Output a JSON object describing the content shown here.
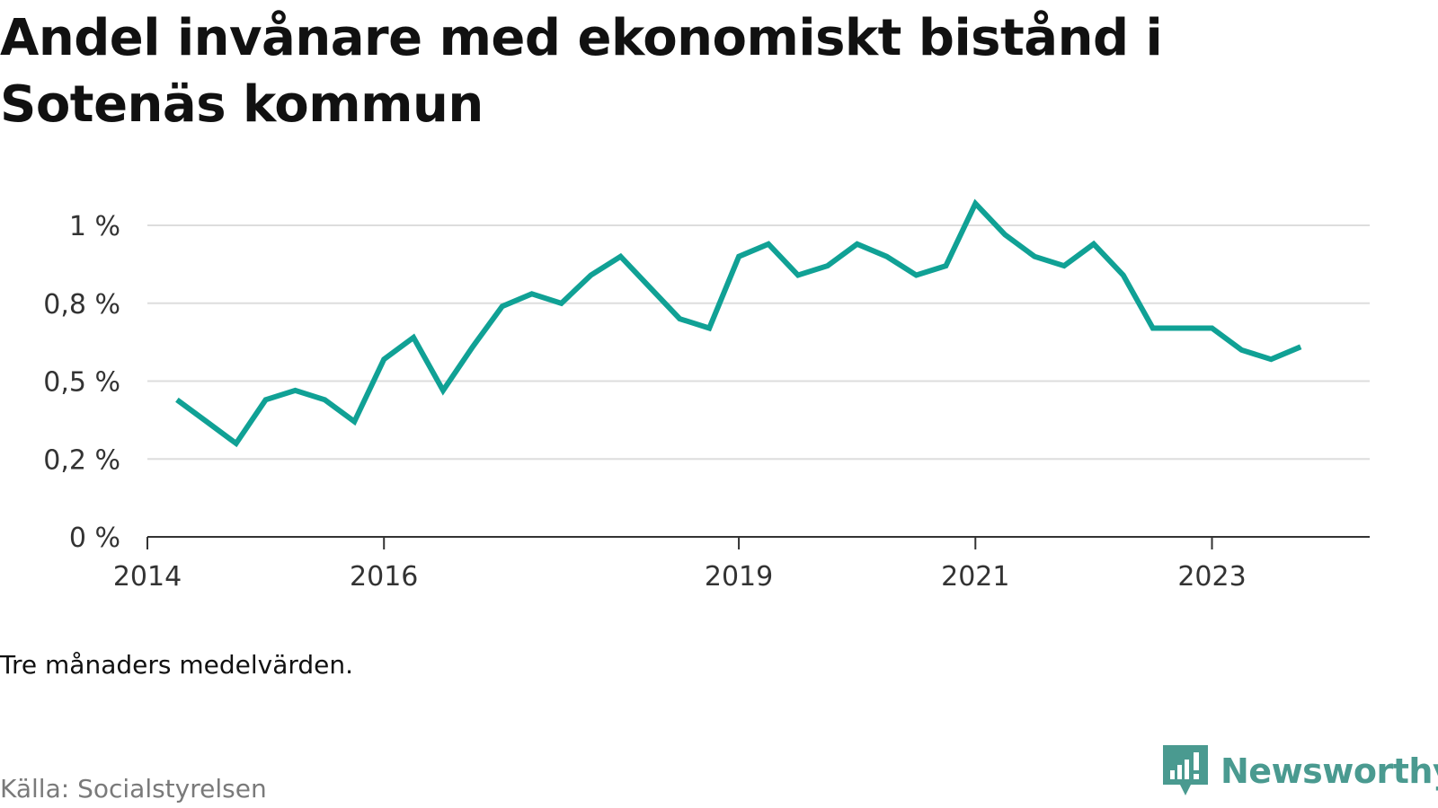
{
  "title": "Andel invånare med ekonomiskt bistånd i Sotenäs kommun",
  "note": "Tre månaders medelvärden.",
  "source": "Källa: Socialstyrelsen",
  "brand": {
    "name": "Newsworthy",
    "icon": "newsworthy-logo-icon",
    "color": "#4a9a90"
  },
  "colors": {
    "line": "#10a195",
    "grid": "#dddddd",
    "axis": "#333333"
  },
  "chart_data": {
    "type": "line",
    "title": "",
    "xlabel": "",
    "ylabel": "",
    "ylim": [
      0,
      1.0
    ],
    "yticks": [
      {
        "value": 0,
        "label": "0 %"
      },
      {
        "value": 0.25,
        "label": "0,2 %"
      },
      {
        "value": 0.5,
        "label": "0,5 %"
      },
      {
        "value": 0.75,
        "label": "0,8 %"
      },
      {
        "value": 1.0,
        "label": "1 %"
      }
    ],
    "xlim": [
      "2014-01",
      "2024-05"
    ],
    "xticks": [
      {
        "value": "2014-01",
        "label": "2014"
      },
      {
        "value": "2016-01",
        "label": "2016"
      },
      {
        "value": "2019-01",
        "label": "2019"
      },
      {
        "value": "2021-01",
        "label": "2021"
      },
      {
        "value": "2023-01",
        "label": "2023"
      }
    ],
    "grid": true,
    "legend": "none",
    "series": [
      {
        "x": [
          "2014-04",
          "2014-07",
          "2014-10",
          "2015-01",
          "2015-04",
          "2015-07",
          "2015-10",
          "2016-01",
          "2016-04",
          "2016-07",
          "2016-10",
          "2017-01",
          "2017-04",
          "2017-07",
          "2017-10",
          "2018-01",
          "2018-04",
          "2018-07",
          "2018-10",
          "2019-01",
          "2019-04",
          "2019-07",
          "2019-10",
          "2020-01",
          "2020-04",
          "2020-07",
          "2020-10",
          "2021-01",
          "2021-04",
          "2021-07",
          "2021-10",
          "2022-01",
          "2022-04",
          "2022-07",
          "2022-10",
          "2023-01",
          "2023-04",
          "2023-07",
          "2023-10"
        ],
        "values": [
          0.44,
          0.37,
          0.3,
          0.44,
          0.47,
          0.44,
          0.37,
          0.57,
          0.64,
          0.47,
          0.61,
          0.74,
          0.78,
          0.75,
          0.84,
          0.9,
          0.8,
          0.7,
          0.67,
          0.9,
          0.94,
          0.84,
          0.87,
          0.94,
          0.9,
          0.84,
          0.87,
          1.07,
          0.97,
          0.9,
          0.87,
          0.94,
          0.84,
          0.67,
          0.67,
          0.67,
          0.6,
          0.57,
          0.61
        ]
      }
    ]
  }
}
